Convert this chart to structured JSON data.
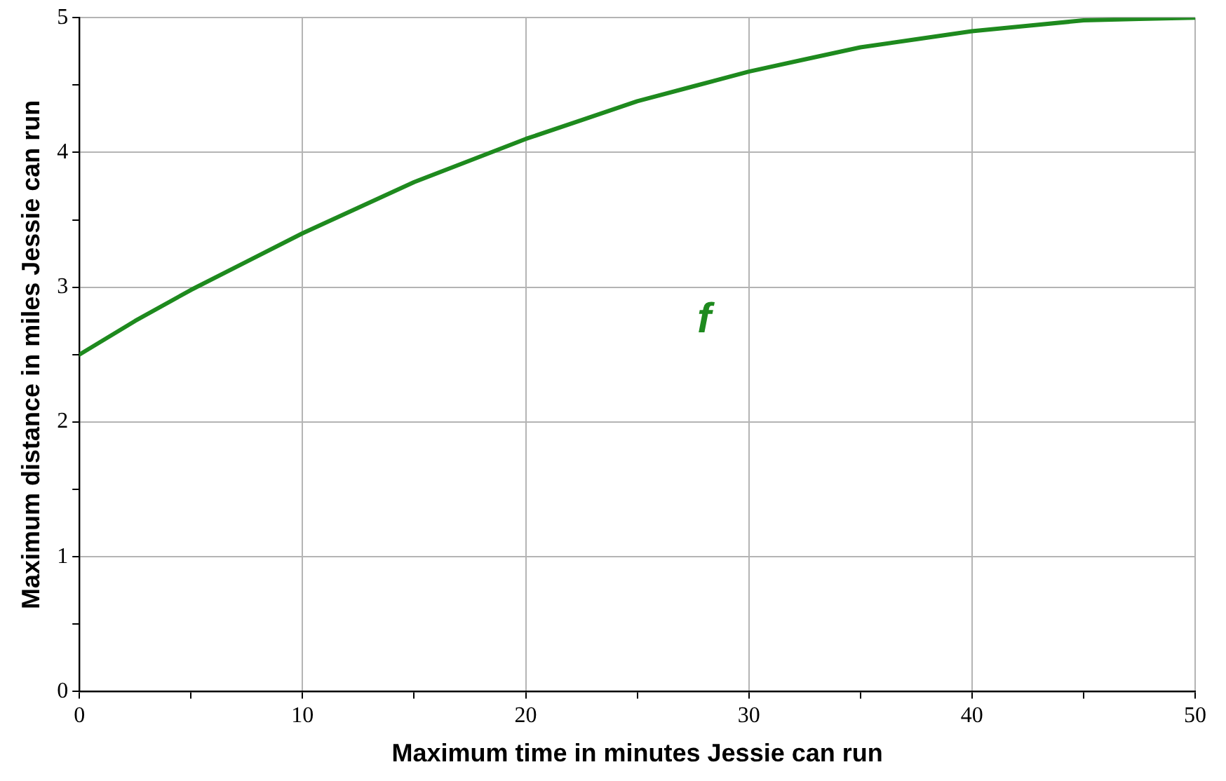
{
  "chart_data": {
    "type": "line",
    "xlabel": "Maximum time in minutes Jessie can run",
    "ylabel": "Maximum distance in miles Jessie can run",
    "x": [
      0,
      2.5,
      5,
      7.5,
      10,
      12.5,
      15,
      17.5,
      20,
      22.5,
      25,
      27.5,
      30,
      32.5,
      35,
      37.5,
      40,
      42.5,
      45,
      47.5,
      50
    ],
    "series": [
      {
        "name": "f",
        "color": "#1e8a1e",
        "values": [
          2.5,
          2.75,
          2.98,
          3.19,
          3.4,
          3.59,
          3.78,
          3.94,
          4.1,
          4.24,
          4.38,
          4.49,
          4.6,
          4.69,
          4.78,
          4.84,
          4.9,
          4.94,
          4.98,
          4.99,
          5.0
        ]
      }
    ],
    "xlim": [
      0,
      50
    ],
    "ylim": [
      0,
      5
    ],
    "xticks": [
      0,
      {
        "value": 5,
        "label": null
      },
      10,
      {
        "value": 15,
        "label": null
      },
      20,
      {
        "value": 25,
        "label": null
      },
      30,
      {
        "value": 35,
        "label": null
      },
      40,
      {
        "value": 45,
        "label": null
      },
      50
    ],
    "yticks": [
      0,
      {
        "value": 0.5,
        "label": null
      },
      1,
      {
        "value": 1.5,
        "label": null
      },
      2,
      {
        "value": 2.5,
        "label": null
      },
      3,
      {
        "value": 3.5,
        "label": null
      },
      4,
      {
        "value": 4.5,
        "label": null
      },
      5
    ],
    "grid": true,
    "legend": false,
    "marker": "none",
    "line_style": "solid"
  }
}
